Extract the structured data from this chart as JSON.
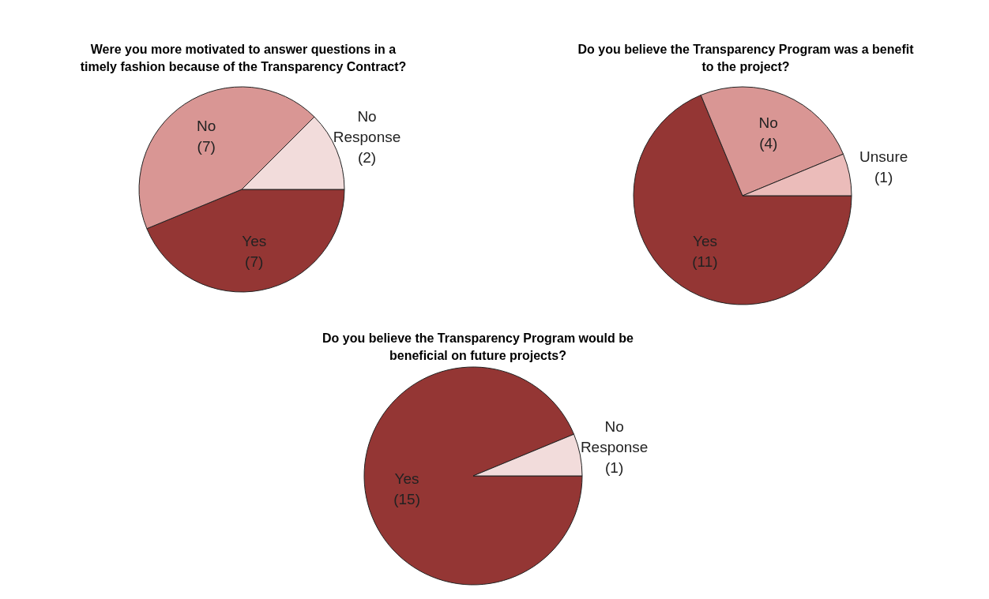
{
  "chart_data": [
    {
      "type": "pie",
      "title": "Were you more motivated to answer questions in a timely fashion because of the Transparency Contract?",
      "categories": [
        "Yes",
        "No",
        "No Response"
      ],
      "values": [
        7,
        7,
        2
      ],
      "value_labels": [
        "(7)",
        "(7)",
        "(2)"
      ],
      "colors": [
        "#943634",
        "#d99694",
        "#f2dcdb"
      ]
    },
    {
      "type": "pie",
      "title": "Do you believe the Transparency Program was a benefit to the project?",
      "categories": [
        "Yes",
        "No",
        "Unsure"
      ],
      "values": [
        11,
        4,
        1
      ],
      "value_labels": [
        "(11)",
        "(4)",
        "(1)"
      ],
      "colors": [
        "#943634",
        "#d99694",
        "#ebbcba"
      ]
    },
    {
      "type": "pie",
      "title": "Do you believe the Transparency Program would be beneficial on future projects?",
      "categories": [
        "Yes",
        "No Response"
      ],
      "values": [
        15,
        1
      ],
      "value_labels": [
        "(15)",
        "(1)"
      ],
      "colors": [
        "#943634",
        "#f2dcdb"
      ]
    }
  ]
}
